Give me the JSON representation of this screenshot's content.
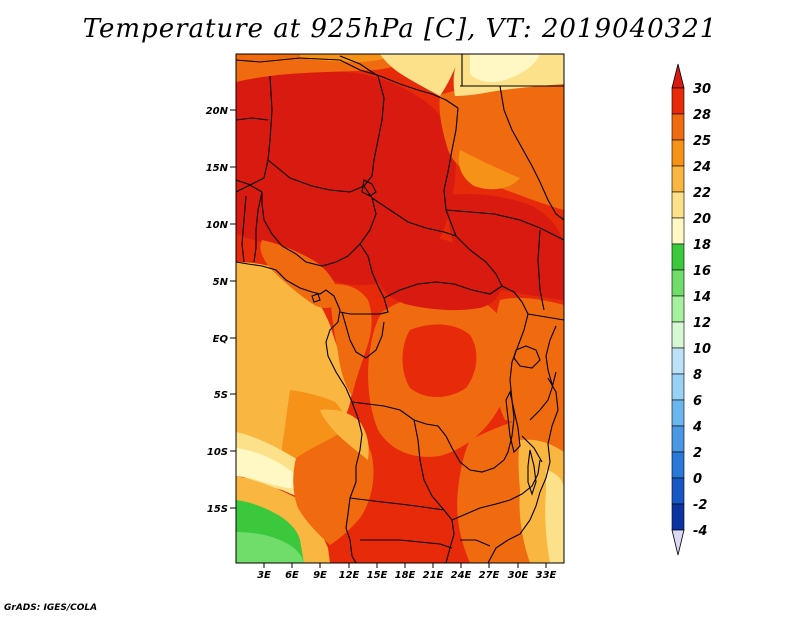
{
  "title": "Temperature at 925hPa [C], VT: 2019040321",
  "credit": "GrADS: IGES/COLA",
  "map": {
    "lat_labels": [
      "20N",
      "15N",
      "10N",
      "5N",
      "EQ",
      "5S",
      "10S",
      "15S"
    ],
    "lon_labels": [
      "3E",
      "6E",
      "9E",
      "12E",
      "15E",
      "18E",
      "21E",
      "24E",
      "27E",
      "30E",
      "33E"
    ]
  },
  "colorbar": {
    "levels": [
      "30",
      "28",
      "25",
      "24",
      "22",
      "20",
      "18",
      "16",
      "14",
      "12",
      "10",
      "8",
      "6",
      "4",
      "2",
      "0",
      "-2",
      "-4"
    ],
    "colors": {
      "above_30": "#d91a10",
      "c28_30": "#e62a0a",
      "c25_28": "#f06a10",
      "c24_25": "#f69218",
      "c22_24": "#f9b640",
      "c20_22": "#fde18a",
      "c18_20": "#fff8c4",
      "c16_18": "#3cc83c",
      "c14_16": "#70dd6a",
      "c12_14": "#a6f09e",
      "c10_12": "#d6f8d2",
      "c8_10": "#bde2f8",
      "c6_8": "#98d0f6",
      "c4_6": "#6cb6ee",
      "c2_4": "#4a98e4",
      "c0_2": "#2a78d8",
      "cm2_0": "#1858c4",
      "cm4_m2": "#0b34a0",
      "below_m4": "#0a1270",
      "lowest_tip": "#d9d9f5"
    }
  },
  "palette": {
    "hot": "#d91a10",
    "red": "#e62a0a",
    "orange": "#f06a10",
    "amber": "#f69218",
    "gold": "#f9b640",
    "cream": "#fde18a",
    "pale": "#fff8c4",
    "green": "#3cc83c",
    "lightgreen": "#70dd6a",
    "border": "#000000"
  }
}
